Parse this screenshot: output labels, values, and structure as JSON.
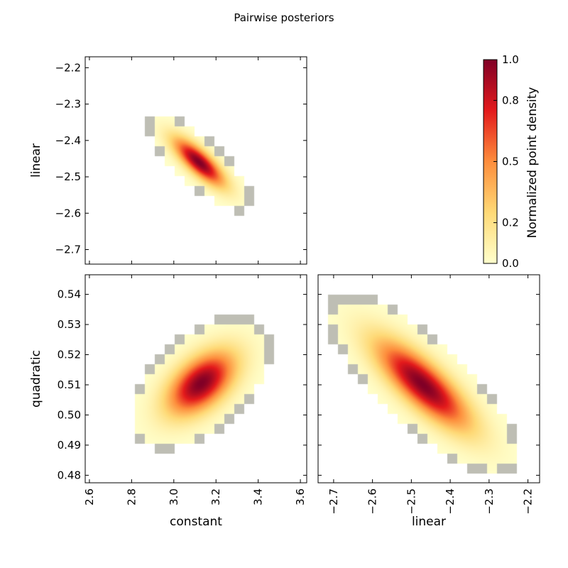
{
  "figure": {
    "title": "Pairwise posteriors",
    "colorbar": {
      "label": "Normalized point density",
      "ticks": [
        "0.0",
        "0.2",
        "0.5",
        "0.8",
        "1.0"
      ],
      "tick_values": [
        0.0,
        0.2,
        0.5,
        0.8,
        1.0
      ],
      "colors": [
        "#ffffcc",
        "#fed976",
        "#fd8d3c",
        "#e31a1c",
        "#800026"
      ]
    }
  },
  "chart_data": [
    {
      "id": "linear_vs_constant",
      "type": "heatmap",
      "xlabel": "",
      "ylabel": "linear",
      "xlim": [
        2.58,
        3.63
      ],
      "ylim": [
        -2.74,
        -2.17
      ],
      "xticks": [
        2.6,
        2.8,
        3.0,
        3.2,
        3.4,
        3.6
      ],
      "xtick_labels": [
        "",
        "",
        "",
        "",
        "",
        ""
      ],
      "yticks": [
        -2.2,
        -2.3,
        -2.4,
        -2.5,
        -2.6,
        -2.7
      ],
      "ytick_labels": [
        "−2.2",
        "−2.3",
        "−2.4",
        "−2.5",
        "−2.6",
        "−2.7"
      ],
      "density": {
        "peak": [
          3.12,
          -2.46
        ],
        "sigma_major": 0.09,
        "sigma_minor": 0.022,
        "correlation": -0.985,
        "extent_x": [
          2.58,
          3.63
        ],
        "extent_y": [
          -2.74,
          -2.17
        ]
      }
    },
    {
      "id": "quadratic_vs_constant",
      "type": "heatmap",
      "xlabel": "constant",
      "ylabel": "quadratic",
      "xlim": [
        2.58,
        3.63
      ],
      "ylim": [
        0.4775,
        0.5465
      ],
      "xticks": [
        2.6,
        2.8,
        3.0,
        3.2,
        3.4,
        3.6
      ],
      "xtick_labels": [
        "2.6",
        "2.8",
        "3.0",
        "3.2",
        "3.4",
        "3.6"
      ],
      "yticks": [
        0.48,
        0.49,
        0.5,
        0.51,
        0.52,
        0.53,
        0.54
      ],
      "ytick_labels": [
        "0.48",
        "0.49",
        "0.50",
        "0.51",
        "0.52",
        "0.53",
        "0.54"
      ],
      "density": {
        "peak": [
          3.13,
          0.5105
        ],
        "sigma_major": 0.11,
        "sigma_minor": 0.045,
        "correlation": 0.93,
        "extent_x": [
          2.58,
          3.63
        ],
        "extent_y": [
          0.4775,
          0.5465
        ]
      }
    },
    {
      "id": "quadratic_vs_linear",
      "type": "heatmap",
      "xlabel": "linear",
      "ylabel": "",
      "xlim": [
        -2.74,
        -2.17
      ],
      "ylim": [
        0.4775,
        0.5465
      ],
      "xticks": [
        -2.7,
        -2.6,
        -2.5,
        -2.4,
        -2.3,
        -2.2
      ],
      "xtick_labels": [
        "−2.7",
        "−2.6",
        "−2.5",
        "−2.4",
        "−2.3",
        "−2.2"
      ],
      "yticks": [
        0.48,
        0.49,
        0.5,
        0.51,
        0.52,
        0.53,
        0.54
      ],
      "ytick_labels": [
        "",
        "",
        "",
        "",
        "",
        "",
        ""
      ],
      "density": {
        "peak": [
          -2.47,
          0.51
        ],
        "sigma_major": 0.09,
        "sigma_minor": 0.022,
        "correlation": -0.975,
        "extent_x": [
          -2.74,
          -2.17
        ],
        "extent_y": [
          0.4775,
          0.5465
        ]
      }
    }
  ]
}
